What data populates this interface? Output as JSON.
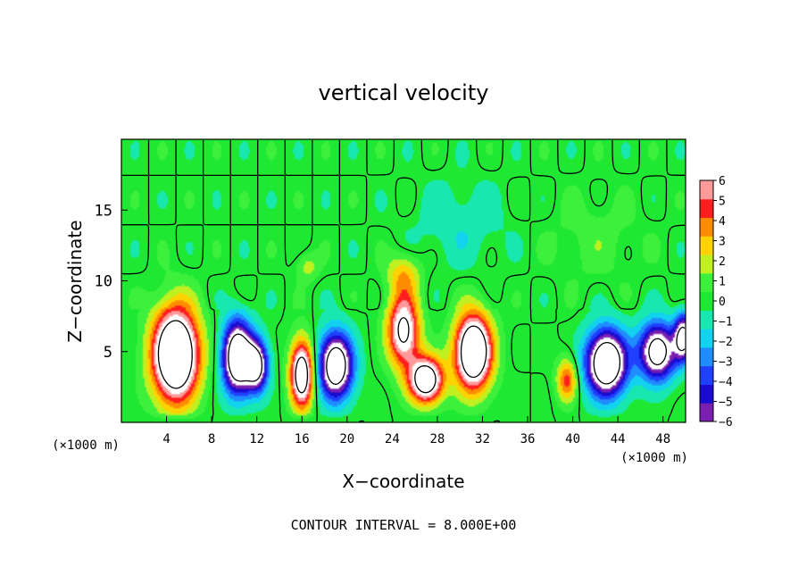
{
  "chart_data": {
    "type": "heatmap",
    "title": "vertical velocity",
    "xlabel": "X−coordinate",
    "ylabel": "Z−coordinate",
    "x_unit_label": "(×1000 m)",
    "z_unit_label": "(×1000 m)",
    "xlim": [
      0,
      50
    ],
    "ylim": [
      0,
      20
    ],
    "x_ticks": [
      4,
      8,
      12,
      16,
      20,
      24,
      28,
      32,
      36,
      40,
      44,
      48
    ],
    "y_ticks": [
      5,
      10,
      15
    ],
    "colorbar": {
      "ticks": [
        "6",
        "5",
        "4",
        "3",
        "2",
        "1",
        "0",
        "−1",
        "−2",
        "−3",
        "−4",
        "−5",
        "−6"
      ],
      "range": [
        -6,
        6
      ]
    },
    "footnote": "CONTOUR INTERVAL = 8.000E+00",
    "features": [
      {
        "x": 4.8,
        "z": 4.8,
        "amp": 14,
        "sx": 2.0,
        "sz": 3.2
      },
      {
        "x": 10.3,
        "z": 4.6,
        "amp": -12,
        "sx": 1.3,
        "sz": 2.5
      },
      {
        "x": 12.0,
        "z": 4.0,
        "amp": -9,
        "sx": 1.0,
        "sz": 1.8
      },
      {
        "x": 16.0,
        "z": 3.4,
        "amp": 11,
        "sx": 1.0,
        "sz": 2.3
      },
      {
        "x": 19.0,
        "z": 4.0,
        "amp": -11,
        "sx": 1.5,
        "sz": 2.3
      },
      {
        "x": 25.0,
        "z": 6.5,
        "amp": 9,
        "sx": 1.4,
        "sz": 2.5
      },
      {
        "x": 27.0,
        "z": 3.0,
        "amp": 11,
        "sx": 1.5,
        "sz": 1.6
      },
      {
        "x": 31.2,
        "z": 5.0,
        "amp": 13,
        "sx": 1.6,
        "sz": 2.6
      },
      {
        "x": 39.5,
        "z": 3.0,
        "amp": 5,
        "sx": 0.9,
        "sz": 1.5
      },
      {
        "x": 43.0,
        "z": 4.2,
        "amp": -12,
        "sx": 1.8,
        "sz": 2.3
      },
      {
        "x": 47.5,
        "z": 5.0,
        "amp": -10,
        "sx": 1.6,
        "sz": 2.0
      },
      {
        "x": 49.8,
        "z": 6.0,
        "amp": -9,
        "sx": 0.8,
        "sz": 1.6
      },
      {
        "x": 16.5,
        "z": 11.0,
        "amp": 2.0,
        "sx": 1.0,
        "sz": 1.0
      },
      {
        "x": 25.0,
        "z": 10.5,
        "amp": 3.0,
        "sx": 1.5,
        "sz": 1.5
      },
      {
        "x": 42.0,
        "z": 13.0,
        "amp": 1.0,
        "sx": 4.0,
        "sz": 3.0
      },
      {
        "x": 30.0,
        "z": 14.0,
        "amp": -1.3,
        "sx": 4.0,
        "sz": 3.0
      }
    ]
  }
}
